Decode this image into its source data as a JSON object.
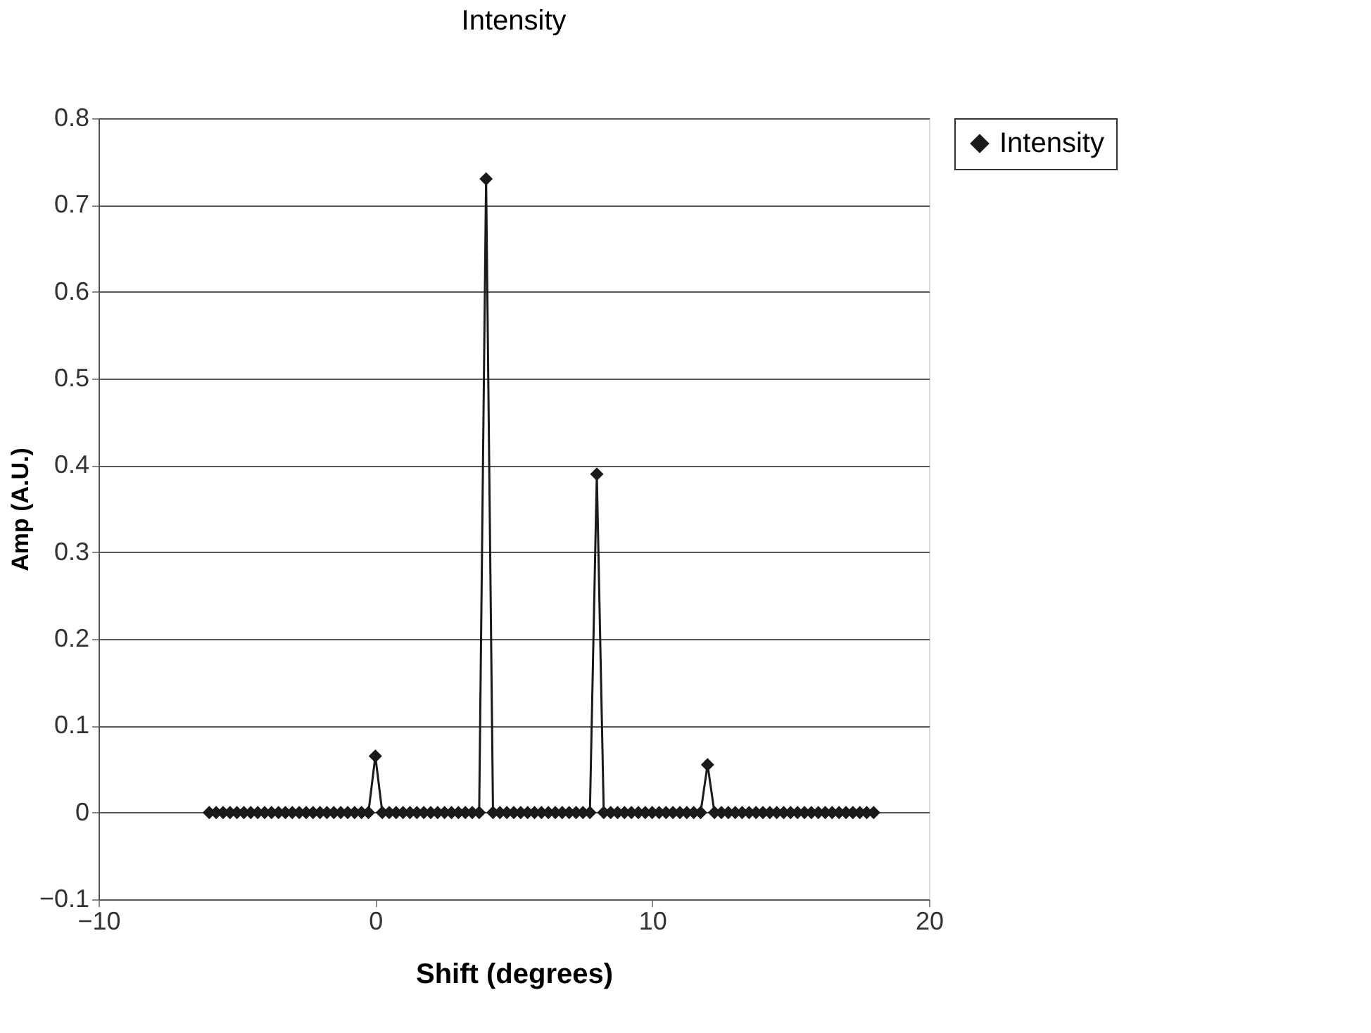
{
  "chart_data": {
    "type": "line",
    "title": "Intensity",
    "xlabel": "Shift (degrees)",
    "ylabel": "Amp (A.U.)",
    "x": [
      -6,
      -5.75,
      -5.5,
      -5.25,
      -5,
      -4.75,
      -4.5,
      -4.25,
      -4,
      -3.75,
      -3.5,
      -3.25,
      -3,
      -2.75,
      -2.5,
      -2.25,
      -2,
      -1.75,
      -1.5,
      -1.25,
      -1,
      -0.75,
      -0.5,
      -0.25,
      0,
      0.25,
      0.5,
      0.75,
      1,
      1.25,
      1.5,
      1.75,
      2,
      2.25,
      2.5,
      2.75,
      3,
      3.25,
      3.5,
      3.75,
      4,
      4.25,
      4.5,
      4.75,
      5,
      5.25,
      5.5,
      5.75,
      6,
      6.25,
      6.5,
      6.75,
      7,
      7.25,
      7.5,
      7.75,
      8,
      8.25,
      8.5,
      8.75,
      9,
      9.25,
      9.5,
      9.75,
      10,
      10.25,
      10.5,
      10.75,
      11,
      11.25,
      11.5,
      11.75,
      12,
      12.25,
      12.5,
      12.75,
      13,
      13.25,
      13.5,
      13.75,
      14,
      14.25,
      14.5,
      14.75,
      15,
      15.25,
      15.5,
      15.75,
      16,
      16.25,
      16.5,
      16.75,
      17,
      17.25,
      17.5,
      17.75,
      18
    ],
    "series": [
      {
        "name": "Intensity",
        "color": "#1a1a1a",
        "values": [
          0,
          0,
          0,
          0,
          0,
          0,
          0,
          0,
          0,
          0,
          0,
          0,
          0,
          0,
          0,
          0,
          0,
          0,
          0,
          0,
          0,
          0,
          0,
          0,
          0.065,
          0,
          0,
          0,
          0,
          0,
          0,
          0,
          0,
          0,
          0,
          0,
          0,
          0,
          0,
          0,
          0.73,
          0,
          0,
          0,
          0,
          0,
          0,
          0,
          0,
          0,
          0,
          0,
          0,
          0,
          0,
          0,
          0.39,
          0,
          0,
          0,
          0,
          0,
          0,
          0,
          0,
          0,
          0,
          0,
          0,
          0,
          0,
          0,
          0.055,
          0,
          0,
          0,
          0,
          0,
          0,
          0,
          0,
          0,
          0,
          0,
          0,
          0,
          0,
          0,
          0,
          0,
          0,
          0,
          0,
          0,
          0,
          0,
          0
        ]
      }
    ],
    "xlim": [
      -10,
      20
    ],
    "xticks": [
      -10,
      0,
      10,
      20
    ],
    "ylim": [
      -0.1,
      0.8
    ],
    "yticks": [
      -0.1,
      0,
      0.1,
      0.2,
      0.3,
      0.4,
      0.5,
      0.6,
      0.7,
      0.8
    ],
    "grid": "y",
    "legend": "right",
    "marker": "diamond",
    "line_style": "solid"
  }
}
